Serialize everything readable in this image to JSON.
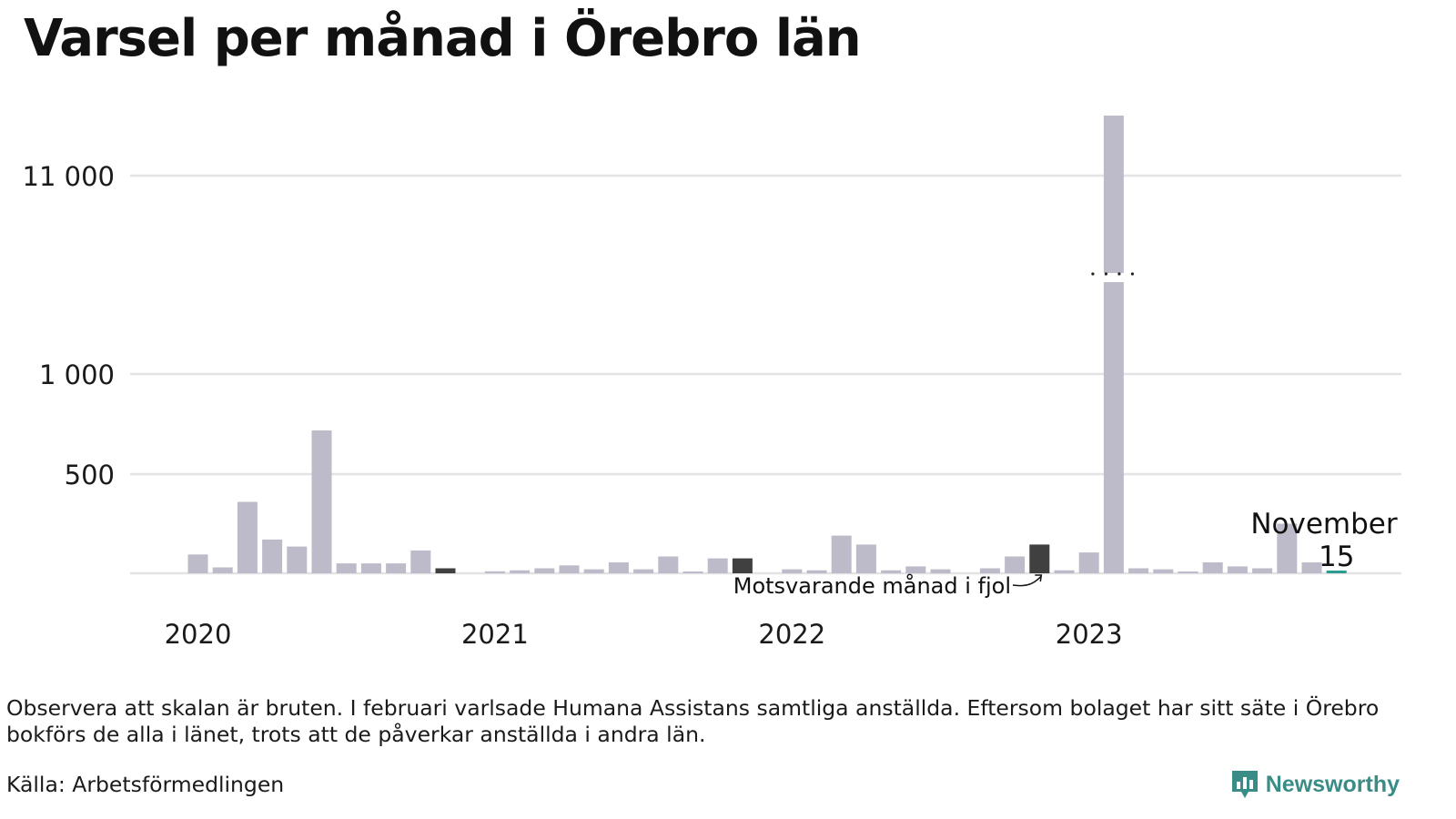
{
  "title": "Varsel per månad i Örebro län",
  "note": "Observera att skalan är bruten. I februari varlsade Humana Assistans samtliga anställda. Eftersom bolaget har sitt säte i Örebro bokförs de alla i länet, trots att de påverkar anställda i andra län.",
  "source": "Källa: Arbetsförmedlingen",
  "brand": "Newsworthy",
  "colors": {
    "bar": "#bdbbc9",
    "highlight": "#404040",
    "current": "#2a9d8f",
    "grid": "#e3e3e6"
  },
  "chart_data": {
    "type": "bar",
    "title": "Varsel per månad i Örebro län",
    "broken_axis": true,
    "y_ticks": [
      {
        "label": "11 000"
      },
      {
        "label": "1 000"
      },
      {
        "label": "500"
      }
    ],
    "x_year_labels": [
      "2020",
      "2021",
      "2022",
      "2023"
    ],
    "values": [
      {
        "month": "2020-01",
        "value": 95
      },
      {
        "month": "2020-02",
        "value": 30
      },
      {
        "month": "2020-03",
        "value": 360
      },
      {
        "month": "2020-04",
        "value": 170
      },
      {
        "month": "2020-05",
        "value": 135
      },
      {
        "month": "2020-06",
        "value": 720
      },
      {
        "month": "2020-07",
        "value": 50
      },
      {
        "month": "2020-08",
        "value": 50
      },
      {
        "month": "2020-09",
        "value": 50
      },
      {
        "month": "2020-10",
        "value": 115
      },
      {
        "month": "2020-11",
        "value": 25,
        "highlight": "previous-year"
      },
      {
        "month": "2020-12",
        "value": 0
      },
      {
        "month": "2021-01",
        "value": 10
      },
      {
        "month": "2021-02",
        "value": 15
      },
      {
        "month": "2021-03",
        "value": 25
      },
      {
        "month": "2021-04",
        "value": 40
      },
      {
        "month": "2021-05",
        "value": 20
      },
      {
        "month": "2021-06",
        "value": 55
      },
      {
        "month": "2021-07",
        "value": 20
      },
      {
        "month": "2021-08",
        "value": 85
      },
      {
        "month": "2021-09",
        "value": 5
      },
      {
        "month": "2021-10",
        "value": 75
      },
      {
        "month": "2021-11",
        "value": 75,
        "highlight": "previous-year"
      },
      {
        "month": "2021-12",
        "value": 0
      },
      {
        "month": "2022-01",
        "value": 20
      },
      {
        "month": "2022-02",
        "value": 15
      },
      {
        "month": "2022-03",
        "value": 190
      },
      {
        "month": "2022-04",
        "value": 145
      },
      {
        "month": "2022-05",
        "value": 15
      },
      {
        "month": "2022-06",
        "value": 35
      },
      {
        "month": "2022-07",
        "value": 20
      },
      {
        "month": "2022-08",
        "value": 0
      },
      {
        "month": "2022-09",
        "value": 25
      },
      {
        "month": "2022-10",
        "value": 85
      },
      {
        "month": "2022-11",
        "value": 145,
        "highlight": "previous-year"
      },
      {
        "month": "2022-12",
        "value": 15
      },
      {
        "month": "2023-01",
        "value": 105
      },
      {
        "month": "2023-02",
        "value": 13500
      },
      {
        "month": "2023-03",
        "value": 25
      },
      {
        "month": "2023-04",
        "value": 20
      },
      {
        "month": "2023-05",
        "value": 5
      },
      {
        "month": "2023-06",
        "value": 55
      },
      {
        "month": "2023-07",
        "value": 35
      },
      {
        "month": "2023-08",
        "value": 25
      },
      {
        "month": "2023-09",
        "value": 250
      },
      {
        "month": "2023-10",
        "value": 55
      },
      {
        "month": "2023-11",
        "value": 15,
        "highlight": "current"
      }
    ],
    "annotations": {
      "current_month": "November",
      "current_value": "15",
      "previous_year_label": "Motsvarande månad i fjol"
    }
  }
}
